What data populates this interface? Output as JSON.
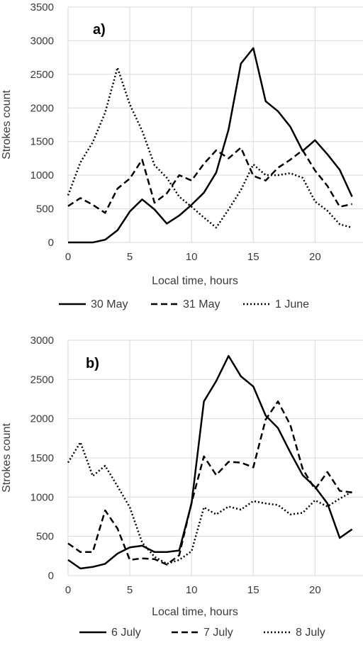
{
  "chart_data": [
    {
      "type": "line",
      "panel_label": "a)",
      "xlabel": "Local time, hours",
      "ylabel": "Strokes count",
      "xlim": [
        0,
        24
      ],
      "ylim": [
        0,
        3500
      ],
      "xticks": [
        0,
        5,
        10,
        15,
        20
      ],
      "yticks": [
        0,
        500,
        1000,
        1500,
        2000,
        2500,
        3000,
        3500
      ],
      "grid": "vertical and horizontal",
      "legend": "bottom",
      "x": [
        0,
        1,
        2,
        3,
        4,
        5,
        6,
        7,
        8,
        9,
        10,
        11,
        12,
        13,
        14,
        15,
        16,
        17,
        18,
        19,
        20,
        21,
        22,
        23
      ],
      "series": [
        {
          "name": "30 May",
          "style": "solid",
          "values": [
            0,
            0,
            0,
            40,
            180,
            460,
            640,
            490,
            280,
            400,
            560,
            740,
            1040,
            1680,
            2660,
            2890,
            2100,
            1950,
            1720,
            1360,
            1520,
            1310,
            1080,
            680
          ]
        },
        {
          "name": "31 May",
          "style": "dashed",
          "values": [
            540,
            660,
            560,
            440,
            800,
            950,
            1230,
            590,
            730,
            1000,
            920,
            1170,
            1370,
            1250,
            1410,
            990,
            920,
            1110,
            1230,
            1370,
            1070,
            840,
            530,
            570
          ]
        },
        {
          "name": "1 June",
          "style": "dotted",
          "values": [
            700,
            1190,
            1490,
            1930,
            2600,
            2050,
            1660,
            1150,
            960,
            680,
            530,
            370,
            220,
            490,
            780,
            1160,
            1000,
            1000,
            1030,
            960,
            610,
            470,
            270,
            220
          ]
        }
      ]
    },
    {
      "type": "line",
      "panel_label": "b)",
      "xlabel": "Local time, hours",
      "ylabel": "Strokes count",
      "xlim": [
        0,
        24
      ],
      "ylim": [
        0,
        3000
      ],
      "xticks": [
        0,
        5,
        10,
        15,
        20
      ],
      "yticks": [
        0,
        500,
        1000,
        1500,
        2000,
        2500,
        3000
      ],
      "grid": "vertical and horizontal",
      "legend": "bottom",
      "x": [
        0,
        1,
        2,
        3,
        4,
        5,
        6,
        7,
        8,
        9,
        10,
        11,
        12,
        13,
        14,
        15,
        16,
        17,
        18,
        19,
        20,
        21,
        22,
        23
      ],
      "series": [
        {
          "name": "6 July",
          "style": "solid",
          "values": [
            200,
            90,
            110,
            150,
            280,
            360,
            380,
            300,
            300,
            320,
            920,
            2220,
            2480,
            2800,
            2540,
            2410,
            2040,
            1880,
            1570,
            1280,
            1130,
            920,
            480,
            590
          ]
        },
        {
          "name": "7 July",
          "style": "dashed",
          "values": [
            410,
            300,
            300,
            830,
            600,
            200,
            220,
            210,
            140,
            260,
            930,
            1520,
            1280,
            1450,
            1440,
            1380,
            1990,
            2220,
            1920,
            1360,
            1100,
            1320,
            1080,
            1060
          ]
        },
        {
          "name": "8 July",
          "style": "dotted",
          "values": [
            1440,
            1700,
            1270,
            1400,
            1140,
            870,
            420,
            240,
            150,
            200,
            310,
            870,
            780,
            880,
            840,
            950,
            920,
            900,
            780,
            800,
            960,
            880,
            980,
            1070
          ]
        }
      ]
    }
  ],
  "colors": {
    "line": "#000000",
    "grid": "#d9d9d9",
    "text": "#3a3a3a"
  }
}
